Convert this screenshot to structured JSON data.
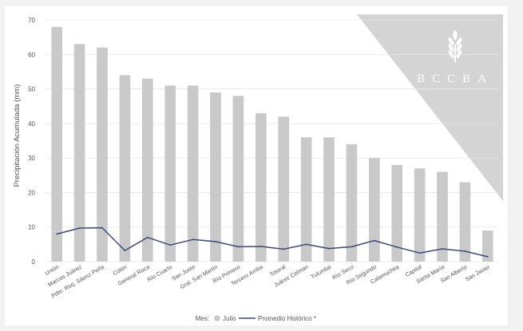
{
  "watermark": {
    "text": "BCCBA",
    "icon": "wheat-icon"
  },
  "legend": {
    "prefix": "Mes:",
    "bar_label": "Julio",
    "line_label": "Promedio Histórico *"
  },
  "chart_data": {
    "type": "bar",
    "title": "",
    "xlabel": "",
    "ylabel": "Precipitación Acumulada (mm)",
    "ylim": [
      0,
      70
    ],
    "yticks": [
      0,
      10,
      20,
      30,
      40,
      50,
      60,
      70
    ],
    "grid": true,
    "legend_position": "bottom-center",
    "categories": [
      "Unión",
      "Marcos Juárez",
      "Pdte. Roq. Sáenz Peña",
      "Colón",
      "General Roca",
      "Río Cuarto",
      "San Justo",
      "Gral. San Martín",
      "Río Primero",
      "Tercero Arriba",
      "Totoral",
      "Juárez Celman",
      "Tulumba",
      "Río Seco",
      "Río Segundo",
      "Calamuchita",
      "Capital",
      "Santa María",
      "San Alberto",
      "San Javier"
    ],
    "series": [
      {
        "name": "Julio",
        "type": "bar",
        "color": "#c9c9c9",
        "values": [
          68,
          63,
          62,
          54,
          53,
          51,
          51,
          49,
          48,
          43,
          42,
          36,
          36,
          34,
          30,
          28,
          27,
          26,
          23,
          9
        ]
      },
      {
        "name": "Promedio Histórico *",
        "type": "line",
        "color": "#3d4a7a",
        "values": [
          8,
          9.7,
          9.8,
          3.2,
          7,
          4.8,
          6.4,
          5.8,
          4.3,
          4.4,
          3.6,
          5,
          3.8,
          4.3,
          6.1,
          4.2,
          2.5,
          3.7,
          3,
          1.4
        ]
      }
    ]
  }
}
